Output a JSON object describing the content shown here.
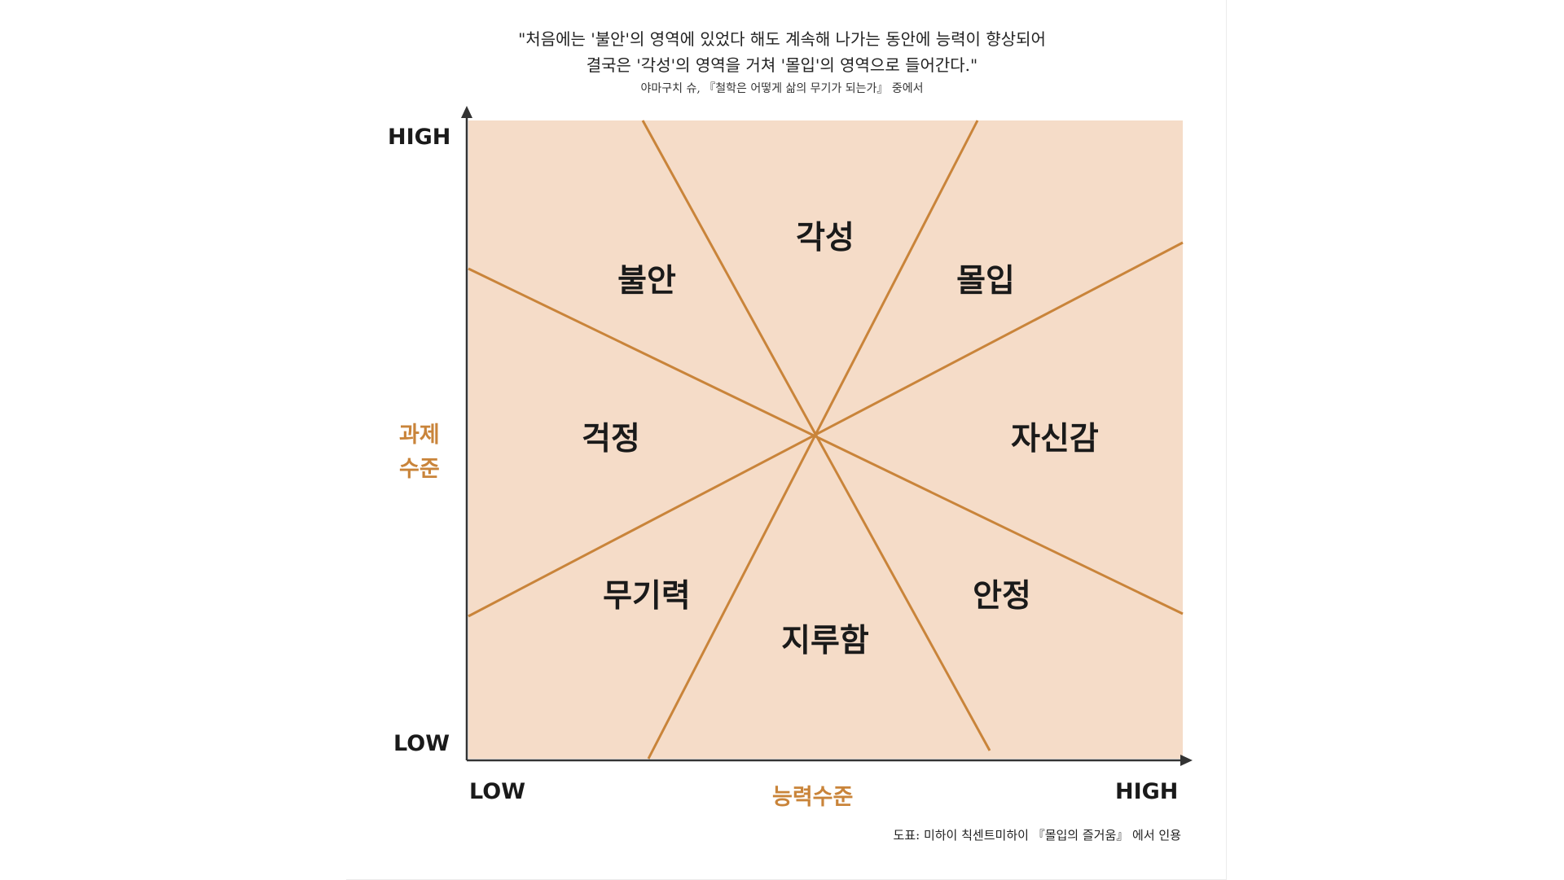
{
  "quote": {
    "line1": "\"처음에는 '불안'의 영역에 있었다 해도 계속해 나가는 동안에 능력이 향상되어",
    "line2": "결국은 '각성'의 영역을 거쳐 '몰입'의 영역으로 들어간다.\"",
    "attribution": "야마구치 슈, 『철학은 어떻게 삶의 무기가 되는가』 중에서"
  },
  "y_axis": {
    "title_line1": "과제",
    "title_line2": "수준",
    "high": "HIGH",
    "low": "LOW"
  },
  "x_axis": {
    "title": "능력수준",
    "low": "LOW",
    "high": "HIGH"
  },
  "regions": {
    "anxiety": "불안",
    "arousal": "각성",
    "flow": "몰입",
    "worry": "걱정",
    "control": "자신감",
    "apathy": "무기력",
    "boredom": "지루함",
    "relaxation": "안정"
  },
  "source": "도표: 미하이 칙센트미하이 『몰입의 즐거움』 에서 인용",
  "colors": {
    "panel": "#f5dcc8",
    "line": "#c9843a",
    "axis": "#333333",
    "accent_text": "#c9843a"
  }
}
